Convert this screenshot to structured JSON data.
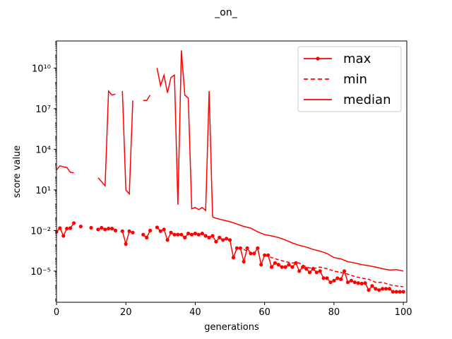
{
  "chart_data": {
    "type": "line",
    "title": "_on_",
    "xlabel": "generations",
    "ylabel": "score value",
    "xlim": [
      0,
      101
    ],
    "ylim": [
      5e-08,
      1000000000000.0
    ],
    "yscale": "log",
    "grid": false,
    "legend_position": "top-right",
    "x_ticks": [
      0,
      20,
      40,
      60,
      80,
      100
    ],
    "y_ticks": [
      {
        "value": 1e-05,
        "label": "10⁻⁵"
      },
      {
        "value": 0.01,
        "label": "10⁻²"
      },
      {
        "value": 10,
        "label": "10¹"
      },
      {
        "value": 10000.0,
        "label": "10⁴"
      },
      {
        "value": 10000000.0,
        "label": "10⁷"
      },
      {
        "value": 10000000000.0,
        "label": "10¹⁰"
      }
    ],
    "series_color": "#ff0000",
    "series": [
      {
        "name": "max",
        "style": "line-dot",
        "points": [
          [
            0,
            0.008
          ],
          [
            1,
            0.015
          ],
          [
            2,
            0.004
          ],
          [
            3,
            0.014
          ],
          [
            4,
            0.015
          ],
          [
            5,
            0.035
          ],
          [
            7,
            0.02
          ],
          [
            10,
            0.016
          ],
          [
            12,
            0.012
          ],
          [
            13,
            0.016
          ],
          [
            14,
            0.012
          ],
          [
            15,
            0.014
          ],
          [
            16,
            0.014
          ],
          [
            17,
            0.01
          ],
          [
            19,
            0.009
          ],
          [
            20,
            0.001
          ],
          [
            21,
            0.009
          ],
          [
            22,
            0.007
          ],
          [
            25,
            0.005
          ],
          [
            26,
            0.003
          ],
          [
            27,
            0.01
          ],
          [
            29,
            0.017
          ],
          [
            30,
            0.009
          ],
          [
            31,
            0.012
          ],
          [
            32,
            0.002
          ],
          [
            33,
            0.007
          ],
          [
            34,
            0.005
          ],
          [
            35,
            0.005
          ],
          [
            36,
            0.005
          ],
          [
            37,
            0.003
          ],
          [
            38,
            0.006
          ],
          [
            39,
            0.005
          ],
          [
            40,
            0.006
          ],
          [
            41,
            0.005
          ],
          [
            42,
            0.006
          ],
          [
            43,
            0.004
          ],
          [
            44,
            0.003
          ],
          [
            45,
            0.004
          ],
          [
            46,
            0.0015
          ],
          [
            47,
            0.003
          ],
          [
            48,
            0.002
          ],
          [
            49,
            0.0025
          ],
          [
            50,
            0.002
          ],
          [
            51,
            0.0001
          ],
          [
            52,
            0.0005
          ],
          [
            53,
            0.0005
          ],
          [
            54,
            5e-05
          ],
          [
            55,
            0.0005
          ],
          [
            56,
            0.0002
          ],
          [
            57,
            0.0002
          ],
          [
            58,
            0.0005
          ],
          [
            59,
            3e-05
          ],
          [
            60,
            0.00015
          ],
          [
            61,
            0.00015
          ],
          [
            62,
            2e-05
          ],
          [
            63,
            4e-05
          ],
          [
            64,
            3e-05
          ],
          [
            65,
            2e-05
          ],
          [
            66,
            2e-05
          ],
          [
            67,
            3e-05
          ],
          [
            68,
            2e-05
          ],
          [
            69,
            4e-05
          ],
          [
            70,
            1e-05
          ],
          [
            71,
            2e-05
          ],
          [
            72,
            1.5e-05
          ],
          [
            73,
            8e-06
          ],
          [
            74,
            1.5e-05
          ],
          [
            75,
            8e-06
          ],
          [
            76,
            1e-05
          ],
          [
            77,
            3e-06
          ],
          [
            78,
            3e-06
          ],
          [
            79,
            1.5e-06
          ],
          [
            80,
            2e-06
          ],
          [
            81,
            3e-06
          ],
          [
            82,
            2.5e-06
          ],
          [
            83,
            1e-05
          ],
          [
            84,
            1.5e-06
          ],
          [
            85,
            2e-06
          ],
          [
            86,
            1.5e-06
          ],
          [
            87,
            1.3e-06
          ],
          [
            88,
            1.2e-06
          ],
          [
            89,
            1.3e-06
          ],
          [
            90,
            4e-07
          ],
          [
            91,
            8e-07
          ],
          [
            92,
            5e-07
          ],
          [
            93,
            4e-07
          ],
          [
            94,
            5e-07
          ],
          [
            95,
            5e-07
          ],
          [
            96,
            5e-07
          ],
          [
            97,
            3e-07
          ],
          [
            98,
            3e-07
          ],
          [
            99,
            3e-07
          ],
          [
            100,
            3e-07
          ]
        ]
      },
      {
        "name": "min",
        "style": "dashed",
        "segments": [
          [
            [
              54,
              0.0004
            ],
            [
              55,
              0.0003
            ]
          ],
          [
            [
              60,
              0.00015
            ],
            [
              62,
              0.0001
            ],
            [
              64,
              7e-05
            ],
            [
              66,
              5e-05
            ],
            [
              68,
              4e-05
            ],
            [
              70,
              4e-05
            ],
            [
              72,
              2e-05
            ],
            [
              74,
              1.5e-05
            ],
            [
              76,
              2e-05
            ],
            [
              78,
              1.5e-05
            ],
            [
              80,
              1e-05
            ],
            [
              82,
              8e-06
            ],
            [
              84,
              6e-06
            ],
            [
              86,
              4e-06
            ],
            [
              88,
              3e-06
            ],
            [
              90,
              2.5e-06
            ],
            [
              92,
              1.5e-06
            ],
            [
              94,
              1.5e-06
            ],
            [
              96,
              1e-06
            ],
            [
              98,
              8e-07
            ],
            [
              100,
              7e-07
            ]
          ]
        ]
      },
      {
        "name": "median",
        "style": "solid",
        "segments": [
          [
            [
              0,
              300
            ],
            [
              1,
              600
            ],
            [
              2,
              500
            ],
            [
              3,
              450
            ],
            [
              4,
              200
            ],
            [
              5,
              180
            ]
          ],
          [
            [
              12,
              80
            ],
            [
              14,
              20
            ],
            [
              15,
              200000000.0
            ],
            [
              16,
              100000000.0
            ],
            [
              17,
              120000000.0
            ]
          ],
          [
            [
              19,
              200000000.0
            ],
            [
              20,
              10
            ],
            [
              21,
              5
            ],
            [
              22,
              40000000.0
            ]
          ],
          [
            [
              25,
              40000000.0
            ],
            [
              26,
              40000000.0
            ],
            [
              27,
              100000000.0
            ]
          ],
          [
            [
              29,
              10000000000.0
            ],
            [
              30,
              500000000.0
            ],
            [
              31,
              3000000000.0
            ],
            [
              32,
              150000000.0
            ],
            [
              33,
              2000000000.0
            ],
            [
              34,
              3000000000.0
            ],
            [
              35,
              0.8
            ],
            [
              36,
              200000000000.0
            ],
            [
              37,
              100000000.0
            ],
            [
              38,
              60000000.0
            ],
            [
              39,
              0.4
            ],
            [
              40,
              0.5
            ],
            [
              41,
              0.35
            ],
            [
              42,
              0.5
            ],
            [
              43,
              0.3
            ],
            [
              44,
              200000000.0
            ],
            [
              45,
              0.1
            ]
          ],
          [
            [
              45,
              0.1
            ],
            [
              46,
              0.08
            ],
            [
              48,
              0.06
            ],
            [
              50,
              0.045
            ],
            [
              52,
              0.03
            ],
            [
              54,
              0.02
            ],
            [
              56,
              0.015
            ],
            [
              58,
              0.008
            ],
            [
              60,
              0.005
            ],
            [
              62,
              0.004
            ],
            [
              64,
              0.003
            ],
            [
              66,
              0.002
            ],
            [
              68,
              0.0012
            ],
            [
              70,
              0.0008
            ],
            [
              72,
              0.0006
            ],
            [
              74,
              0.0004
            ],
            [
              76,
              0.0003
            ],
            [
              78,
              0.0002
            ],
            [
              80,
              0.0001
            ],
            [
              82,
              8e-05
            ],
            [
              84,
              5e-05
            ],
            [
              86,
              4e-05
            ],
            [
              88,
              3e-05
            ],
            [
              90,
              2.5e-05
            ],
            [
              92,
              2e-05
            ],
            [
              94,
              1.5e-05
            ],
            [
              96,
              1.2e-05
            ],
            [
              98,
              1.3e-05
            ],
            [
              100,
              1e-05
            ]
          ]
        ]
      }
    ]
  }
}
